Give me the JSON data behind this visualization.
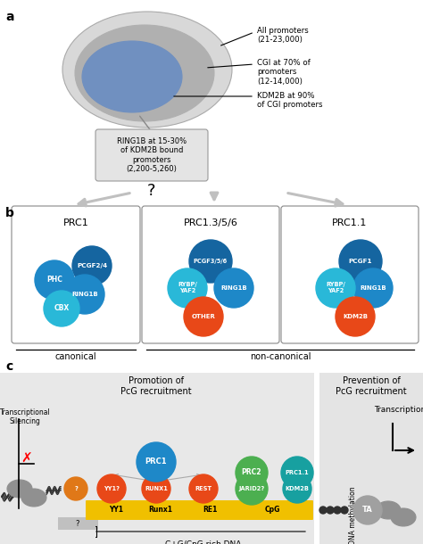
{
  "bg_color": "#ffffff",
  "blue_dark": "#1565a0",
  "blue_mid": "#1e88c8",
  "blue_light": "#29b8d8",
  "orange_red": "#e84818",
  "green": "#4caf50",
  "teal_prc11": "#17a0a0",
  "gold": "#f0c000",
  "gray_bg": "#e8e8e8",
  "panel_gray": "#ebebeb",
  "annot1": "All promoters\n(21-23,000)",
  "annot2": "CGI at 70% of\npromoters\n(12-14,000)",
  "annot3": "KDM2B at 90%\nof CGI promoters",
  "box_text": "RING1B at 15-30%\nof KDM2B bound\npromoters\n(2,200-5,260)",
  "prc1_title": "PRC1",
  "prc135_title": "PRC1.3/5/6",
  "prc11_title": "PRC1.1",
  "canonical": "canonical",
  "noncanonical": "non-canonical",
  "promo_text": "Promotion of\nPcG recruitment",
  "prevent_text": "Prevention of\nPcG recruitment",
  "trans_sil": "Transcriptional\nSilencing",
  "transcription": "Transcription",
  "dna_meth": "DNA methylation",
  "cpg_label": "C+G/CpG rich DNA"
}
